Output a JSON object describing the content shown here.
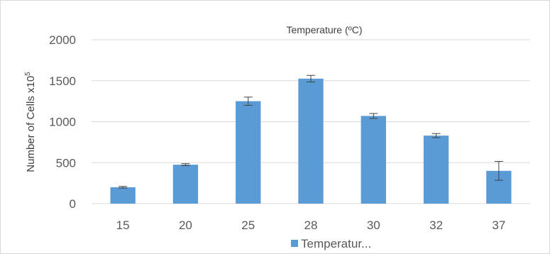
{
  "chart_data": {
    "type": "bar",
    "title": "Temperature (ºC)",
    "xlabel": "",
    "ylabel": "Number of Cells x10",
    "ylabel_superscript": "5",
    "categories": [
      "15",
      "20",
      "25",
      "28",
      "30",
      "32",
      "37"
    ],
    "series": [
      {
        "name": "Temperatur...",
        "values": [
          200,
          475,
          1250,
          1525,
          1070,
          830,
          400
        ],
        "error": [
          10,
          12,
          50,
          40,
          30,
          25,
          115
        ]
      }
    ],
    "ylim": [
      0,
      2000
    ],
    "yticks": [
      "0",
      "500",
      "1000",
      "1500",
      "2000"
    ],
    "grid": "horizontal",
    "legend": "bottom",
    "colors": {
      "bar": "#5b9bd5",
      "grid": "#d9d9d9",
      "error_bar": "#404040"
    }
  }
}
